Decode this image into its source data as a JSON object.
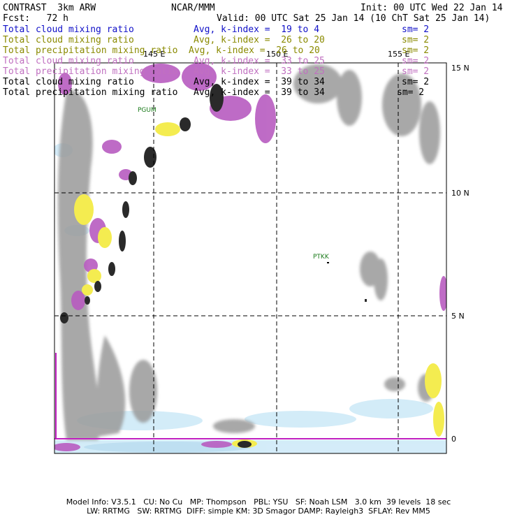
{
  "header": {
    "product": "CONTRAST",
    "model": "3km ARW",
    "center": "NCAR/MMM",
    "init": "Init: 00 UTC Wed 22 Jan 14",
    "fcst_label": "Fcst:",
    "fcst_value": "72 h",
    "valid": "Valid: 00 UTC Sat 25 Jan 14 (10 ChT Sat 25 Jan 14)"
  },
  "legend": [
    {
      "name": "Total cloud mixing ratio",
      "avg": "Avg, k-index =",
      "range": "19 to 4",
      "sm": "sm= 2",
      "color": "#1010c8"
    },
    {
      "name": "Total cloud mixing ratio",
      "avg": "Avg, k-index =",
      "range": "26 to 20",
      "sm": "sm= 2",
      "color": "#8a8a00"
    },
    {
      "name": "Total precipitation mixing ratio",
      "avg": "Avg, k-index =",
      "range": "26 to 20",
      "sm": "sm= 2",
      "color": "#8a8a00"
    },
    {
      "name": "Total cloud mixing ratio",
      "avg": "Avg, k-index =",
      "range": "33 to 25",
      "sm": "sm= 2",
      "color": "#c070c0"
    },
    {
      "name": "Total precipitation mixing ratio",
      "avg": "Avg, k-index =",
      "range": "33 to 25",
      "sm": "sm= 2",
      "color": "#c070c0"
    },
    {
      "name": "Total cloud mixing ratio",
      "avg": "Avg, k-index =",
      "range": "39 to 34",
      "sm": "sm= 2",
      "color": "#000000"
    },
    {
      "name": "Total precipitation mixing ratio",
      "avg": "Avg, k-index =",
      "range": "39 to 34",
      "sm": "sm= 2",
      "color": "#000000"
    }
  ],
  "map": {
    "lon_labels": [
      "145 E",
      "150 E",
      "155 E"
    ],
    "lat_labels": [
      "15 N",
      "10 N",
      "5 N",
      "0"
    ],
    "stations": [
      "PGUM",
      "PTKK"
    ],
    "colors": {
      "cloud_gray": "#9a9a9a",
      "dark_core": "#2a2a2a",
      "magenta": "#b85cc0",
      "yellow": "#f4ec50",
      "light_blue": "#cfeaf8",
      "equator_line": "#c020c0"
    }
  },
  "footer": {
    "line1": "Model Info: V3.5.1   CU: No Cu   MP: Thompson   PBL: YSU   SF: Noah LSM   3.0 km  39 levels  18 sec",
    "line2": "LW: RRTMG   SW: RRTMG  DIFF: simple KM: 3D Smagor DAMP: Rayleigh3  SFLAY: Rev MM5"
  }
}
